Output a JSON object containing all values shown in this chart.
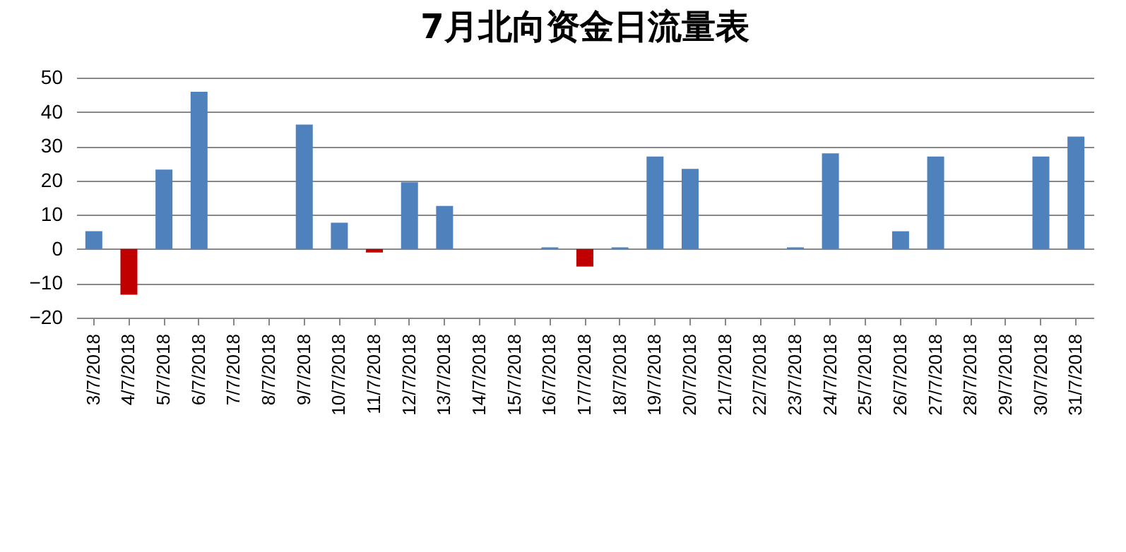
{
  "chart_data": {
    "type": "bar",
    "title": "7月北向资金日流量表",
    "categories": [
      "3/7/2018",
      "4/7/2018",
      "5/7/2018",
      "6/7/2018",
      "7/7/2018",
      "8/7/2018",
      "9/7/2018",
      "10/7/2018",
      "11/7/2018",
      "12/7/2018",
      "13/7/2018",
      "14/7/2018",
      "15/7/2018",
      "16/7/2018",
      "17/7/2018",
      "18/7/2018",
      "19/7/2018",
      "20/7/2018",
      "21/7/2018",
      "22/7/2018",
      "23/7/2018",
      "24/7/2018",
      "25/7/2018",
      "26/7/2018",
      "27/7/2018",
      "28/7/2018",
      "29/7/2018",
      "30/7/2018",
      "31/7/2018"
    ],
    "values": [
      5.2,
      -13.3,
      23.2,
      45.9,
      0,
      0,
      36.3,
      7.7,
      -1,
      19.5,
      12.6,
      0,
      0,
      0.5,
      -5.1,
      0.5,
      27.0,
      23.4,
      0,
      0,
      0.5,
      27.9,
      0,
      5.2,
      27.0,
      0,
      0,
      27.0,
      32.8
    ],
    "colors": [
      "#4f81bd",
      "#c00000",
      "#4f81bd",
      "#4f81bd",
      "#4f81bd",
      "#4f81bd",
      "#4f81bd",
      "#4f81bd",
      "#c00000",
      "#4f81bd",
      "#4f81bd",
      "#4f81bd",
      "#4f81bd",
      "#4f81bd",
      "#c00000",
      "#4f81bd",
      "#4f81bd",
      "#4f81bd",
      "#4f81bd",
      "#4f81bd",
      "#4f81bd",
      "#4f81bd",
      "#4f81bd",
      "#4f81bd",
      "#4f81bd",
      "#4f81bd",
      "#4f81bd",
      "#4f81bd",
      "#4f81bd"
    ],
    "ylim": [
      -20,
      50
    ],
    "yticks": [
      -20,
      -10,
      0,
      10,
      20,
      30,
      40,
      50
    ],
    "grid": "y"
  }
}
